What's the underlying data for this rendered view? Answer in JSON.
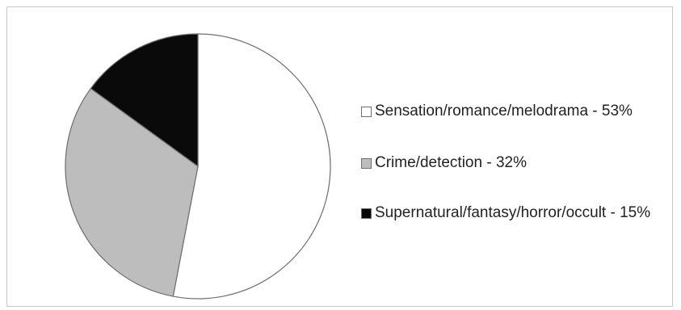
{
  "chart_data": {
    "type": "pie",
    "title": "",
    "legend_position": "right",
    "slices": [
      {
        "label": "Sensation/romance/melodrama",
        "value": 53,
        "color": "#ffffff",
        "legend_text": "Sensation/romance/melodrama - 53%"
      },
      {
        "label": "Crime/detection",
        "value": 32,
        "color": "#bdbdbd",
        "legend_text": "Crime/detection - 32%"
      },
      {
        "label": "Supernatural/fantasy/horror/occult",
        "value": 15,
        "color": "#0a0a0a",
        "legend_text": "Supernatural/fantasy/horror/occult - 15%"
      }
    ],
    "start_angle": "top, clockwise",
    "slice_outline_color": "#6e6e6e"
  }
}
